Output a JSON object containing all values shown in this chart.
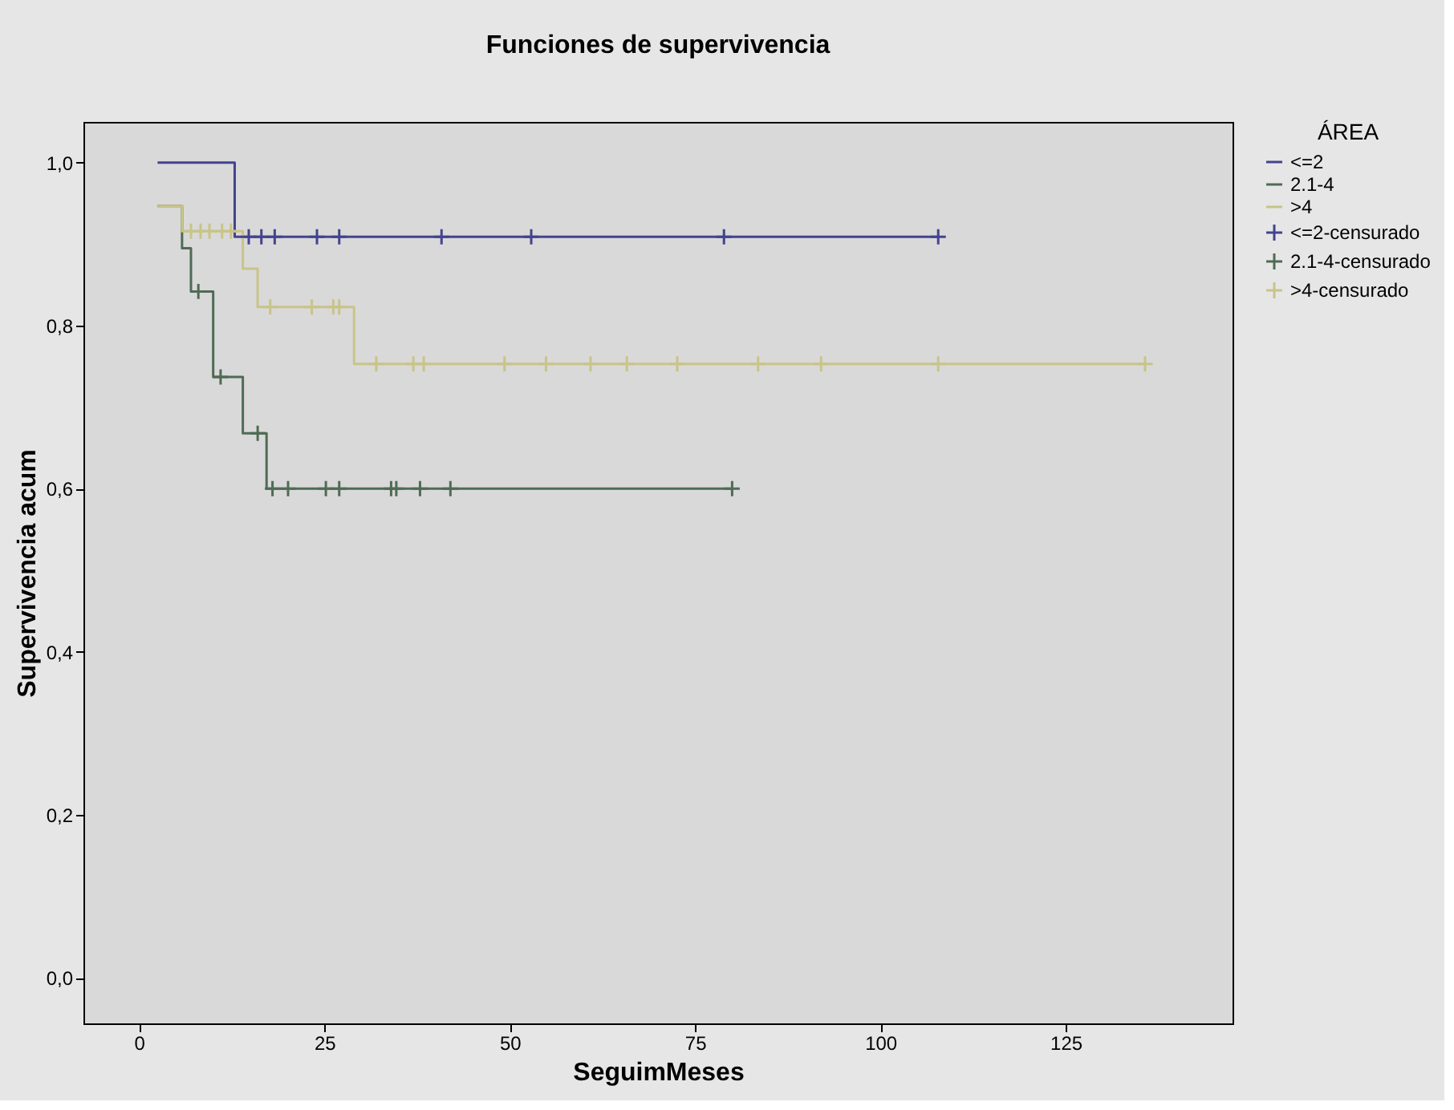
{
  "chart_data": {
    "type": "step",
    "title": "Funciones de supervivencia",
    "xlabel": "SeguimMeses",
    "ylabel": "Supervivencia acum",
    "legend_title": "ÁREA",
    "legend": "top right",
    "grid": false,
    "line_style": "solid",
    "xlim": [
      -7.5,
      147.5
    ],
    "ylim": [
      -0.056,
      1.05
    ],
    "xticks": [
      0,
      25,
      50,
      75,
      100,
      125
    ],
    "yticks": [
      {
        "value": 0,
        "label": "0,0"
      },
      {
        "value": 0.2,
        "label": "0,2"
      },
      {
        "value": 0.4,
        "label": "0,4"
      },
      {
        "value": 0.6,
        "label": "0,6"
      },
      {
        "value": 0.8,
        "label": "0,8"
      },
      {
        "value": 1.0,
        "label": "1,0"
      }
    ],
    "series": [
      {
        "name": "<=2",
        "color": "#43438f",
        "x": [
          2.5,
          12.9,
          12.9,
          108
        ],
        "values": [
          1.0,
          1.0,
          0.909,
          0.909
        ]
      },
      {
        "name": "2.1-4",
        "color": "#4f6b55",
        "x": [
          2.5,
          5.8,
          5.8,
          7,
          7,
          10,
          10,
          14,
          14,
          17.2,
          17.2,
          80
        ],
        "values": [
          0.947,
          0.947,
          0.895,
          0.895,
          0.842,
          0.842,
          0.737,
          0.737,
          0.668,
          0.668,
          0.6,
          0.6
        ]
      },
      {
        "name": ">4",
        "color": "#c9c488",
        "x": [
          2.5,
          5.8,
          5.8,
          14,
          14,
          16,
          16,
          29,
          29,
          135.7
        ],
        "values": [
          0.947,
          0.947,
          0.916,
          0.916,
          0.87,
          0.87,
          0.823,
          0.823,
          0.753,
          0.753
        ]
      },
      {
        "name": "<=2-censurado",
        "type": "scatter",
        "marker": "cross",
        "color": "#43438f",
        "x": [
          14.8,
          16.5,
          18.3,
          24,
          27,
          40.8,
          52.9,
          78.9,
          107.8
        ],
        "values": [
          0.909,
          0.909,
          0.909,
          0.909,
          0.909,
          0.909,
          0.909,
          0.909,
          0.909
        ]
      },
      {
        "name": "2.1-4-censurado",
        "type": "scatter",
        "marker": "cross",
        "color": "#4f6b55",
        "x": [
          8,
          11,
          16,
          18,
          20.1,
          25.2,
          27,
          34,
          34.7,
          37.9,
          42,
          80
        ],
        "values": [
          0.842,
          0.737,
          0.668,
          0.6,
          0.6,
          0.6,
          0.6,
          0.6,
          0.6,
          0.6,
          0.6,
          0.6
        ]
      },
      {
        "name": ">4-censurado",
        "type": "scatter",
        "marker": "cross",
        "color": "#c9c488",
        "x": [
          7,
          8.3,
          9.5,
          11.2,
          12.4,
          17.7,
          23.3,
          26.2,
          27,
          32,
          37,
          38.4,
          49.3,
          54.9,
          60.9,
          65.8,
          72.6,
          83.5,
          92,
          107.8,
          135.7
        ],
        "values": [
          0.916,
          0.916,
          0.916,
          0.916,
          0.916,
          0.823,
          0.823,
          0.823,
          0.823,
          0.753,
          0.753,
          0.753,
          0.753,
          0.753,
          0.753,
          0.753,
          0.753,
          0.753,
          0.753,
          0.753,
          0.753
        ]
      }
    ]
  }
}
